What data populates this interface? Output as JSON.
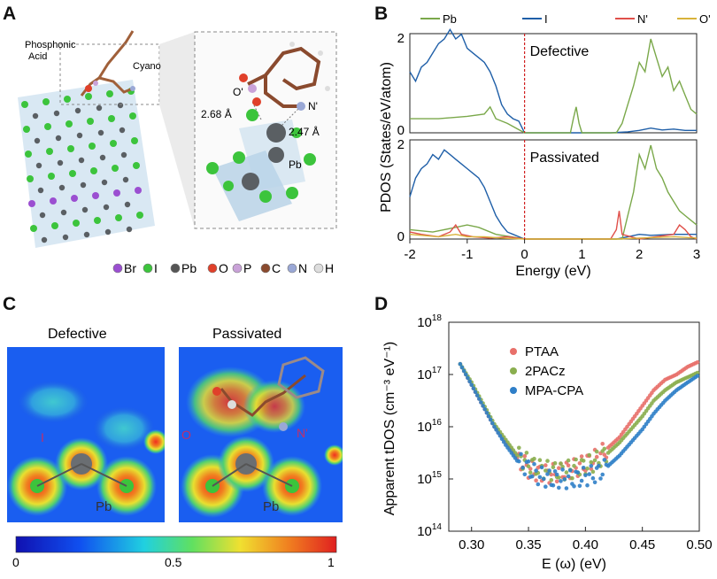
{
  "panels": {
    "A": {
      "letter": "A",
      "labels": {
        "phosphonic": "Phosphonic",
        "acid": "Acid",
        "cyano": "Cyano",
        "o_prime": "O'",
        "n_prime": "N'",
        "bond1": "2.68 Å",
        "bond2": "2.47 Å",
        "pb": "Pb"
      },
      "legend": [
        {
          "symbol": "Br",
          "color": "#9b4fd1"
        },
        {
          "symbol": "I",
          "color": "#3cc43c"
        },
        {
          "symbol": "Pb",
          "color": "#555555"
        },
        {
          "symbol": "O",
          "color": "#e0402a"
        },
        {
          "symbol": "P",
          "color": "#c9a2d8"
        },
        {
          "symbol": "C",
          "color": "#8a4a2e"
        },
        {
          "symbol": "N",
          "color": "#9aa8d6"
        },
        {
          "symbol": "H",
          "color": "#dddddd"
        }
      ]
    },
    "B": {
      "letter": "B"
    },
    "C": {
      "letter": "C",
      "titles": [
        "Defective",
        "Passivated"
      ],
      "defective_labels": {
        "i": "I",
        "pb": "Pb"
      },
      "passivated_labels": {
        "o": "O",
        "n": "N'",
        "pb": "Pb"
      },
      "colorbar": {
        "ticks": [
          "0",
          "0.5",
          "1"
        ]
      }
    },
    "D": {
      "letter": "D"
    }
  },
  "chart_data": [
    {
      "id": "pdos",
      "type": "line",
      "legend": [
        {
          "name": "Pb",
          "color": "#7aa84a"
        },
        {
          "name": "I",
          "color": "#1f5fa8"
        },
        {
          "name": "N'",
          "color": "#e0504a"
        },
        {
          "name": "O'",
          "color": "#d8b23a"
        }
      ],
      "ylabel": "PDOS (States/eV/atom)",
      "xlabel": "Energy (eV)",
      "xlim": [
        -2,
        3
      ],
      "xticks": [
        "-2",
        "-1",
        "0",
        "1",
        "2",
        "3"
      ],
      "subplots": [
        {
          "name": "Defective",
          "ylim": [
            0,
            2
          ],
          "yticks": [
            "0",
            "2"
          ],
          "series": [
            {
              "name": "I",
              "x": [
                -2,
                -1.9,
                -1.8,
                -1.7,
                -1.6,
                -1.5,
                -1.4,
                -1.3,
                -1.2,
                -1.1,
                -1.0,
                -0.9,
                -0.8,
                -0.7,
                -0.6,
                -0.5,
                -0.4,
                -0.3,
                -0.2,
                -0.1,
                0,
                0.5,
                1,
                1.5,
                1.8,
                2,
                2.2,
                2.4,
                2.6,
                2.8,
                3
              ],
              "y": [
                1.3,
                1.1,
                1.4,
                1.5,
                1.7,
                1.9,
                2.0,
                2.2,
                2.0,
                2.1,
                1.8,
                1.7,
                1.6,
                1.5,
                1.3,
                1.0,
                0.6,
                0.4,
                0.3,
                0.25,
                0,
                0,
                0,
                0,
                0.02,
                0.05,
                0.1,
                0.06,
                0.08,
                0.05,
                0.05
              ]
            },
            {
              "name": "Pb",
              "x": [
                -2,
                -1.5,
                -1.0,
                -0.7,
                -0.6,
                -0.5,
                -0.3,
                0,
                0.8,
                0.85,
                0.9,
                0.95,
                1.0,
                1.6,
                1.7,
                1.8,
                1.9,
                2.0,
                2.1,
                2.2,
                2.3,
                2.4,
                2.5,
                2.6,
                2.7,
                2.8,
                2.9,
                3
              ],
              "y": [
                0.3,
                0.3,
                0.35,
                0.4,
                0.55,
                0.3,
                0.2,
                0,
                0,
                0.3,
                0.55,
                0.2,
                0,
                0,
                0.2,
                0.6,
                1.0,
                1.5,
                1.3,
                2.0,
                1.6,
                1.2,
                1.4,
                0.9,
                1.1,
                0.8,
                0.5,
                0.4
              ]
            }
          ]
        },
        {
          "name": "Passivated",
          "ylim": [
            0,
            2
          ],
          "yticks": [
            "0",
            "2"
          ],
          "series": [
            {
              "name": "I",
              "x": [
                -2,
                -1.9,
                -1.8,
                -1.7,
                -1.6,
                -1.5,
                -1.4,
                -1.3,
                -1.2,
                -1.1,
                -1.0,
                -0.9,
                -0.8,
                -0.7,
                -0.6,
                -0.5,
                -0.4,
                -0.3,
                -0.2,
                -0.1,
                0,
                1,
                1.6,
                1.8,
                2,
                2.2,
                2.6,
                3
              ],
              "y": [
                0.9,
                1.3,
                1.5,
                1.6,
                1.8,
                1.7,
                1.9,
                1.8,
                1.7,
                1.6,
                1.5,
                1.4,
                1.3,
                1.1,
                0.8,
                0.5,
                0.3,
                0.15,
                0.1,
                0.05,
                0,
                0,
                0,
                0.05,
                0.1,
                0.08,
                0.1,
                0.1
              ]
            },
            {
              "name": "Pb",
              "x": [
                -2,
                -1.6,
                -1.2,
                -1.0,
                -0.8,
                -0.5,
                0,
                1.7,
                1.8,
                1.9,
                2.0,
                2.1,
                2.2,
                2.3,
                2.4,
                2.5,
                2.6,
                2.7,
                2.8,
                2.9,
                3
              ],
              "y": [
                0.2,
                0.15,
                0.25,
                0.3,
                0.25,
                0.1,
                0,
                0,
                0.5,
                1.0,
                1.8,
                1.5,
                2.0,
                1.5,
                1.3,
                1.0,
                0.8,
                0.6,
                0.5,
                0.4,
                0.3
              ]
            },
            {
              "name": "N'",
              "x": [
                -2,
                -1.8,
                -1.5,
                -1.3,
                -1.2,
                -1.1,
                -0.9,
                -0.6,
                -0.3,
                0,
                1.5,
                1.6,
                1.65,
                1.7,
                2,
                2.6,
                2.7,
                2.8,
                2.9,
                3
              ],
              "y": [
                0.15,
                0.1,
                0.05,
                0.15,
                0.3,
                0.1,
                0.05,
                0.02,
                0.05,
                0,
                0,
                0.2,
                0.6,
                0.1,
                0,
                0.1,
                0.3,
                0.2,
                0.05,
                0
              ]
            },
            {
              "name": "O'",
              "x": [
                -2,
                -1.8,
                -1.5,
                -1.2,
                -1.0,
                -0.7,
                -0.4,
                0,
                1.6,
                2.0,
                2.6,
                3
              ],
              "y": [
                0.1,
                0.08,
                0.05,
                0.1,
                0.05,
                0.05,
                0.02,
                0,
                0,
                0.02,
                0.05,
                0.02
              ]
            }
          ]
        }
      ]
    },
    {
      "id": "tdos",
      "type": "scatter",
      "xlabel": "E (ω) (eV)",
      "ylabel": "Apparent tDOS (cm⁻³ eV⁻¹)",
      "xlim": [
        0.28,
        0.5
      ],
      "ylim": [
        14,
        18
      ],
      "yscale": "log",
      "xticks": [
        "0.30",
        "0.35",
        "0.40",
        "0.45",
        "0.50"
      ],
      "yticks": [
        {
          "base": "10",
          "exp": "14"
        },
        {
          "base": "10",
          "exp": "15"
        },
        {
          "base": "10",
          "exp": "16"
        },
        {
          "base": "10",
          "exp": "17"
        },
        {
          "base": "10",
          "exp": "18"
        }
      ],
      "series": [
        {
          "name": "PTAA",
          "color": "#e8706a",
          "x": [
            0.29,
            0.3,
            0.31,
            0.32,
            0.33,
            0.34,
            0.35,
            0.36,
            0.37,
            0.38,
            0.39,
            0.4,
            0.41,
            0.42,
            0.43,
            0.44,
            0.45,
            0.46,
            0.47,
            0.48,
            0.49,
            0.5
          ],
          "log_y": [
            17.2,
            16.8,
            16.4,
            16.0,
            15.7,
            15.4,
            15.2,
            15.1,
            15.1,
            15.15,
            15.2,
            15.3,
            15.4,
            15.6,
            15.8,
            16.1,
            16.4,
            16.7,
            16.9,
            17.0,
            17.15,
            17.25
          ]
        },
        {
          "name": "2PACz",
          "color": "#8aae4f",
          "x": [
            0.29,
            0.3,
            0.31,
            0.32,
            0.33,
            0.34,
            0.35,
            0.36,
            0.37,
            0.38,
            0.39,
            0.4,
            0.41,
            0.42,
            0.43,
            0.44,
            0.45,
            0.46,
            0.47,
            0.48,
            0.49,
            0.5
          ],
          "log_y": [
            17.2,
            16.85,
            16.45,
            16.05,
            15.75,
            15.45,
            15.3,
            15.2,
            15.15,
            15.15,
            15.2,
            15.25,
            15.35,
            15.5,
            15.7,
            15.95,
            16.2,
            16.5,
            16.7,
            16.85,
            16.95,
            17.05
          ]
        },
        {
          "name": "MPA-CPA",
          "color": "#2f7fc8",
          "x": [
            0.29,
            0.3,
            0.31,
            0.32,
            0.33,
            0.34,
            0.35,
            0.36,
            0.37,
            0.38,
            0.39,
            0.4,
            0.41,
            0.42,
            0.43,
            0.44,
            0.45,
            0.46,
            0.47,
            0.48,
            0.49,
            0.5
          ],
          "log_y": [
            17.2,
            16.8,
            16.4,
            16.0,
            15.65,
            15.35,
            15.2,
            15.05,
            15.0,
            15.0,
            15.0,
            15.05,
            15.1,
            15.25,
            15.45,
            15.7,
            15.95,
            16.25,
            16.5,
            16.7,
            16.85,
            17.0
          ]
        }
      ]
    }
  ]
}
